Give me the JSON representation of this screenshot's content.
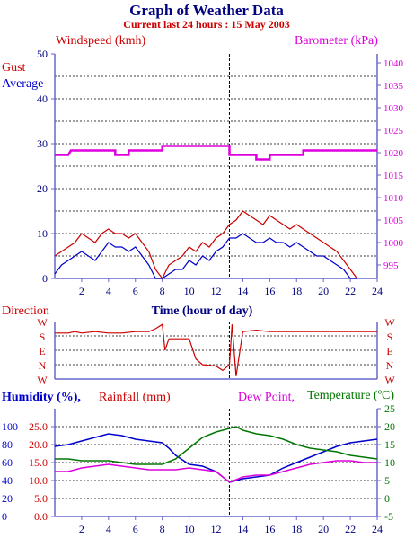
{
  "header": {
    "title": "Graph of Weather Data",
    "subtitle": "Current last 24 hours : 15 May 2003"
  },
  "colors": {
    "navy": "#000080",
    "red": "#cc0000",
    "blue": "#0000cc",
    "magenta": "#dd00dd",
    "green": "#007700",
    "frame": "#6666cc",
    "grid": "#000000"
  },
  "chart_data": [
    {
      "id": "wind-baro",
      "type": "line",
      "labels": {
        "windspeed": "Windspeed (kmh)",
        "barometer": "Barometer (kPa)",
        "gust": "Gust",
        "average": "Average"
      },
      "xlim": [
        0,
        24
      ],
      "x_ticks": [
        2,
        4,
        6,
        8,
        10,
        12,
        14,
        16,
        18,
        20,
        22,
        24
      ],
      "x_tick_labels": [
        "2",
        "4",
        "6",
        "8",
        "10",
        "12",
        "14",
        "16",
        "18",
        "20",
        "22",
        "24"
      ],
      "ylim_left": [
        0,
        50
      ],
      "y_ticks_left": [
        0,
        10,
        20,
        30,
        40,
        50
      ],
      "y_tick_labels_left": [
        "0",
        "10",
        "20",
        "30",
        "40",
        "50"
      ],
      "ylim_right": [
        992,
        1042
      ],
      "y_ticks_right": [
        995,
        1000,
        1005,
        1010,
        1015,
        1020,
        1025,
        1030,
        1035,
        1040
      ],
      "y_tick_labels_right": [
        "995",
        "1000",
        "1005",
        "1010",
        "1015",
        "1020",
        "1025",
        "1030",
        "1035",
        "1040"
      ],
      "grid_every": 5,
      "current_time_marker": 13,
      "series": [
        {
          "name": "Gust",
          "color": "#cc0000",
          "axis": "left",
          "x": [
            0,
            0.5,
            1,
            1.5,
            2,
            2.5,
            3,
            3.5,
            4,
            4.5,
            5,
            5.5,
            6,
            6.5,
            7,
            7.5,
            8,
            8.5,
            9,
            9.5,
            10,
            10.5,
            11,
            11.5,
            12,
            12.5,
            13,
            13.5,
            14,
            14.5,
            15,
            15.5,
            16,
            16.5,
            17,
            17.5,
            18,
            18.5,
            19,
            19.5,
            20,
            20.5,
            21,
            21.5,
            22,
            22.5
          ],
          "y": [
            5,
            6,
            7,
            8,
            10,
            9,
            8,
            10,
            11,
            10,
            10,
            9,
            10,
            8,
            6,
            2,
            0,
            3,
            4,
            5,
            7,
            6,
            8,
            7,
            9,
            10,
            12,
            13,
            15,
            14,
            13,
            12,
            14,
            13,
            12,
            11,
            12,
            11,
            10,
            9,
            8,
            7,
            6,
            4,
            2,
            0
          ]
        },
        {
          "name": "Average",
          "color": "#0000cc",
          "axis": "left",
          "x": [
            0,
            0.5,
            1,
            1.5,
            2,
            2.5,
            3,
            3.5,
            4,
            4.5,
            5,
            5.5,
            6,
            6.5,
            7,
            7.5,
            8,
            8.5,
            9,
            9.5,
            10,
            10.5,
            11,
            11.5,
            12,
            12.5,
            13,
            13.5,
            14,
            14.5,
            15,
            15.5,
            16,
            16.5,
            17,
            17.5,
            18,
            18.5,
            19,
            19.5,
            20,
            20.5,
            21,
            21.5,
            22,
            22.5
          ],
          "y": [
            1,
            3,
            4,
            5,
            6,
            5,
            4,
            6,
            8,
            7,
            7,
            6,
            7,
            5,
            3,
            0,
            0,
            1,
            2,
            2,
            4,
            3,
            5,
            4,
            6,
            7,
            9,
            9,
            10,
            9,
            8,
            8,
            9,
            8,
            8,
            7,
            8,
            7,
            6,
            5,
            5,
            4,
            3,
            2,
            0,
            0
          ]
        },
        {
          "name": "Barometer",
          "color": "#dd00dd",
          "axis": "right",
          "x": [
            0,
            1,
            1.2,
            4.5,
            4.5,
            5.5,
            5.5,
            8,
            8,
            13,
            13,
            15,
            15,
            16,
            16,
            18.5,
            18.5,
            19,
            19,
            24
          ],
          "y": [
            1019.5,
            1019.5,
            1020.5,
            1020.5,
            1019.5,
            1019.5,
            1020.5,
            1020.5,
            1021.5,
            1021.5,
            1019.5,
            1019.5,
            1018.5,
            1018.5,
            1019.5,
            1019.5,
            1020.5,
            1020.5,
            1020.5,
            1020.5
          ]
        }
      ]
    },
    {
      "id": "direction",
      "type": "line",
      "title": "Time (hour of day)",
      "ylabel": "Direction",
      "xlim": [
        0,
        24
      ],
      "categories": [
        "W",
        "S",
        "E",
        "N",
        "W"
      ],
      "ylim": [
        0,
        4
      ],
      "series": [
        {
          "name": "Direction",
          "color": "#cc0000",
          "x": [
            0,
            1,
            1.5,
            2,
            3,
            4,
            5,
            6,
            7,
            7.5,
            8,
            8.2,
            8.5,
            9,
            10,
            10.5,
            11,
            12,
            12.5,
            13,
            13.2,
            13.5,
            14,
            15,
            16,
            17,
            18,
            19,
            20,
            21,
            22,
            23,
            24
          ],
          "y": [
            3.2,
            3.2,
            3.3,
            3.2,
            3.3,
            3.2,
            3.2,
            3.3,
            3.3,
            3.5,
            3.8,
            2.0,
            2.8,
            2.8,
            2.8,
            1.4,
            1.0,
            0.9,
            0.6,
            1.0,
            3.8,
            0.2,
            3.3,
            3.4,
            3.3,
            3.3,
            3.3,
            3.3,
            3.3,
            3.3,
            3.3,
            3.3,
            3.3
          ]
        }
      ]
    },
    {
      "id": "climate",
      "type": "line",
      "labels": {
        "humidity": "Humidity (%),",
        "rainfall": "Rainfall (mm)",
        "dewpoint": "Dew Point,",
        "temperature": "Temperature (ºC)"
      },
      "xlim": [
        0,
        24
      ],
      "x_ticks": [
        2,
        4,
        6,
        8,
        10,
        12,
        14,
        16,
        18,
        20,
        22,
        24
      ],
      "x_tick_labels": [
        "2",
        "4",
        "6",
        "8",
        "10",
        "12",
        "14",
        "16",
        "18",
        "20",
        "22",
        "24"
      ],
      "humidity_ticks": [
        "0",
        "20",
        "40",
        "60",
        "80",
        "100"
      ],
      "rainfall_ticks": [
        "0.0",
        "5.0",
        "10.0",
        "15.0",
        "20.0",
        "25.0"
      ],
      "temperature_ticks": [
        "-5",
        "0",
        "5",
        "10",
        "15",
        "20",
        "25"
      ],
      "ylim_left": [
        0,
        30
      ],
      "ylim_right": [
        -5,
        25
      ],
      "current_time_marker": 13,
      "series": [
        {
          "name": "Humidity",
          "color": "#0000cc",
          "axis": "left",
          "x": [
            0,
            1,
            2,
            3,
            4,
            5,
            6,
            7,
            8,
            8.5,
            9,
            10,
            11,
            12,
            13,
            14,
            15,
            16,
            17,
            18,
            19,
            20,
            21,
            22,
            23,
            24
          ],
          "y": [
            19.5,
            20,
            21,
            22,
            23,
            22.5,
            21.5,
            21,
            20.5,
            19,
            17,
            14.5,
            14,
            12.5,
            9.5,
            10.5,
            11,
            11.5,
            13.5,
            15,
            16.5,
            18,
            19.5,
            20.5,
            21,
            21.5
          ]
        },
        {
          "name": "Dew Point",
          "color": "#dd00dd",
          "axis": "right",
          "x": [
            0,
            1,
            2,
            3,
            4,
            5,
            6,
            7,
            8,
            9,
            10,
            11,
            12,
            13,
            14,
            15,
            16,
            17,
            18,
            19,
            20,
            21,
            22,
            23,
            24
          ],
          "y": [
            7.5,
            7.5,
            8.5,
            9,
            9.5,
            9,
            8.5,
            8,
            8,
            8,
            8.5,
            8,
            7.5,
            4.5,
            6,
            6.5,
            6.5,
            7.5,
            8.5,
            9.5,
            10,
            10.5,
            10.5,
            10,
            10
          ]
        },
        {
          "name": "Temperature",
          "color": "#007700",
          "axis": "right",
          "x": [
            0,
            1,
            2,
            3,
            4,
            5,
            6,
            7,
            8,
            9,
            10,
            11,
            12,
            13,
            13.5,
            14,
            15,
            16,
            17,
            18,
            19,
            20,
            21,
            22,
            23,
            24
          ],
          "y": [
            11,
            11,
            10.5,
            10.5,
            10.5,
            10,
            9.5,
            9.5,
            9.5,
            11,
            14,
            17,
            18.5,
            19.5,
            20,
            19,
            18,
            17.5,
            16.5,
            15,
            14,
            13.5,
            13,
            12,
            11.5,
            11
          ]
        }
      ]
    }
  ]
}
